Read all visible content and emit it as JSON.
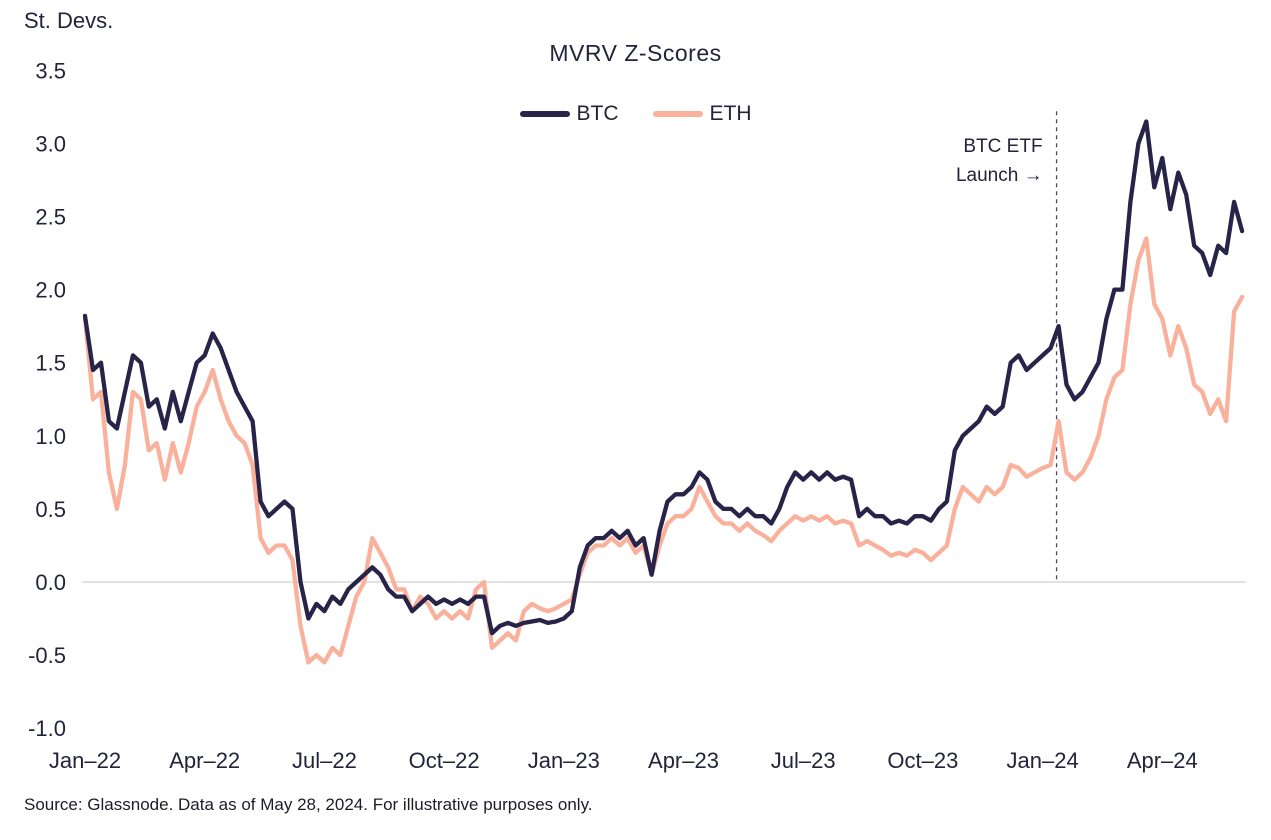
{
  "labels": {
    "y_unit": "St. Devs.",
    "source": "Source: Glassnode. Data as of May 28, 2024. For illustrative purposes only."
  },
  "chart_data": {
    "type": "line",
    "title": "MVRV Z-Scores",
    "ylabel": "St. Devs.",
    "xlabel": "",
    "ylim": [
      -1.0,
      3.5
    ],
    "grid": "zero-line-only",
    "legend_position": "top-center",
    "x_unit": "months since Jan-2022",
    "t_start": 0,
    "t_step": 0.2,
    "y_ticks": [
      "3.5",
      "3.0",
      "2.5",
      "2.0",
      "1.5",
      "1.0",
      "0.5",
      "0.0",
      "-0.5",
      "-1.0"
    ],
    "x_ticks": [
      {
        "t": 0,
        "label": "Jan–22"
      },
      {
        "t": 3,
        "label": "Apr–22"
      },
      {
        "t": 6,
        "label": "Jul–22"
      },
      {
        "t": 9,
        "label": "Oct–22"
      },
      {
        "t": 12,
        "label": "Jan–23"
      },
      {
        "t": 15,
        "label": "Apr–23"
      },
      {
        "t": 18,
        "label": "Jul–23"
      },
      {
        "t": 21,
        "label": "Oct–23"
      },
      {
        "t": 24,
        "label": "Jan–24"
      },
      {
        "t": 27,
        "label": "Apr–24"
      }
    ],
    "annotation": {
      "lines": [
        "BTC ETF",
        "Launch →"
      ],
      "t": 24.35,
      "line_top_value": 3.22,
      "text_anchor_value": 3.08,
      "line_color": "#4a4768"
    },
    "zero_line_color": "#d9d9d9",
    "series": [
      {
        "name": "ETH",
        "color": "#f9b19c",
        "values": [
          1.8,
          1.25,
          1.3,
          0.75,
          0.5,
          0.8,
          1.3,
          1.25,
          0.9,
          0.95,
          0.7,
          0.95,
          0.75,
          0.95,
          1.2,
          1.3,
          1.45,
          1.25,
          1.1,
          1.0,
          0.95,
          0.8,
          0.3,
          0.2,
          0.25,
          0.25,
          0.15,
          -0.3,
          -0.55,
          -0.5,
          -0.55,
          -0.45,
          -0.5,
          -0.3,
          -0.1,
          0.0,
          0.3,
          0.2,
          0.1,
          -0.05,
          -0.05,
          -0.2,
          -0.1,
          -0.15,
          -0.25,
          -0.2,
          -0.25,
          -0.2,
          -0.25,
          -0.05,
          0.0,
          -0.45,
          -0.4,
          -0.35,
          -0.4,
          -0.2,
          -0.15,
          -0.18,
          -0.2,
          -0.18,
          -0.15,
          -0.12,
          0.05,
          0.2,
          0.25,
          0.25,
          0.3,
          0.25,
          0.3,
          0.2,
          0.25,
          0.05,
          0.25,
          0.4,
          0.45,
          0.45,
          0.5,
          0.65,
          0.55,
          0.45,
          0.4,
          0.4,
          0.35,
          0.4,
          0.35,
          0.32,
          0.28,
          0.35,
          0.4,
          0.45,
          0.42,
          0.45,
          0.42,
          0.45,
          0.4,
          0.42,
          0.4,
          0.25,
          0.28,
          0.25,
          0.22,
          0.18,
          0.2,
          0.18,
          0.22,
          0.2,
          0.15,
          0.2,
          0.25,
          0.5,
          0.65,
          0.6,
          0.55,
          0.65,
          0.6,
          0.65,
          0.8,
          0.78,
          0.72,
          0.75,
          0.78,
          0.8,
          1.1,
          0.75,
          0.7,
          0.75,
          0.85,
          1.0,
          1.25,
          1.4,
          1.45,
          1.9,
          2.2,
          2.35,
          1.9,
          1.8,
          1.55,
          1.75,
          1.6,
          1.35,
          1.3,
          1.15,
          1.25,
          1.1,
          1.85,
          1.95
        ]
      },
      {
        "name": "BTC",
        "color": "#282449",
        "values": [
          1.82,
          1.45,
          1.5,
          1.1,
          1.05,
          1.3,
          1.55,
          1.5,
          1.2,
          1.25,
          1.05,
          1.3,
          1.1,
          1.3,
          1.5,
          1.55,
          1.7,
          1.6,
          1.45,
          1.3,
          1.2,
          1.1,
          0.55,
          0.45,
          0.5,
          0.55,
          0.5,
          0.0,
          -0.25,
          -0.15,
          -0.2,
          -0.1,
          -0.15,
          -0.05,
          0.0,
          0.05,
          0.1,
          0.05,
          -0.05,
          -0.1,
          -0.1,
          -0.2,
          -0.15,
          -0.1,
          -0.15,
          -0.12,
          -0.15,
          -0.12,
          -0.15,
          -0.1,
          -0.1,
          -0.35,
          -0.3,
          -0.28,
          -0.3,
          -0.28,
          -0.27,
          -0.26,
          -0.28,
          -0.27,
          -0.25,
          -0.2,
          0.1,
          0.25,
          0.3,
          0.3,
          0.35,
          0.3,
          0.35,
          0.25,
          0.3,
          0.05,
          0.35,
          0.55,
          0.6,
          0.6,
          0.65,
          0.75,
          0.7,
          0.55,
          0.5,
          0.5,
          0.45,
          0.5,
          0.45,
          0.45,
          0.4,
          0.5,
          0.65,
          0.75,
          0.7,
          0.75,
          0.7,
          0.75,
          0.7,
          0.72,
          0.7,
          0.45,
          0.5,
          0.45,
          0.45,
          0.4,
          0.42,
          0.4,
          0.45,
          0.45,
          0.42,
          0.5,
          0.55,
          0.9,
          1.0,
          1.05,
          1.1,
          1.2,
          1.15,
          1.2,
          1.5,
          1.55,
          1.45,
          1.5,
          1.55,
          1.6,
          1.75,
          1.35,
          1.25,
          1.3,
          1.4,
          1.5,
          1.8,
          2.0,
          2.0,
          2.6,
          3.0,
          3.15,
          2.7,
          2.9,
          2.55,
          2.8,
          2.65,
          2.3,
          2.25,
          2.1,
          2.3,
          2.25,
          2.6,
          2.4
        ]
      }
    ],
    "legend_order": [
      "BTC",
      "ETH"
    ]
  }
}
